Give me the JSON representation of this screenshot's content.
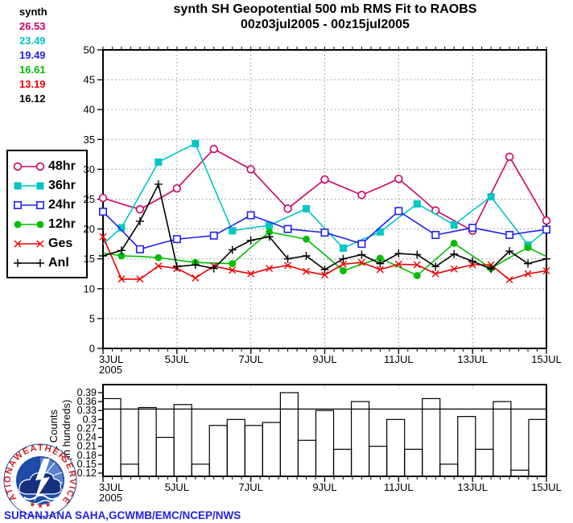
{
  "header": {
    "title_line1": "synth SH Geopotential 500 mb RMS Fit to RAOBS",
    "title_line2": "00z03jul2005 - 00z15jul2005"
  },
  "stats": {
    "rows": [
      {
        "text": "synth",
        "color": "#000000"
      },
      {
        "text": "26.53",
        "color": "#CC0066"
      },
      {
        "text": "23.49",
        "color": "#00C5C5"
      },
      {
        "text": "19.49",
        "color": "#2222EE"
      },
      {
        "text": "16.61",
        "color": "#00BE00"
      },
      {
        "text": "13.19",
        "color": "#EE0000"
      },
      {
        "text": "16.12",
        "color": "#000000"
      }
    ]
  },
  "legend": {
    "items": [
      {
        "label": "48hr",
        "color": "#CC0066",
        "marker": "circle-open"
      },
      {
        "label": "36hr",
        "color": "#00C5C5",
        "marker": "square-filled"
      },
      {
        "label": "24hr",
        "color": "#2222EE",
        "marker": "square-open"
      },
      {
        "label": "12hr",
        "color": "#00BE00",
        "marker": "circle-filled"
      },
      {
        "label": "Ges",
        "color": "#EE0000",
        "marker": "x"
      },
      {
        "label": "Anl",
        "color": "#000000",
        "marker": "plus"
      }
    ]
  },
  "chart_data": [
    {
      "type": "line",
      "title": "synth SH Geopotential 500 mb RMS Fit to RAOBS 00z03jul2005 - 00z15jul2005",
      "x_unit": "12-hourly synoptic times",
      "ylim": [
        0,
        50
      ],
      "ystep": 5,
      "grid": "dotted",
      "x_tick_labels": [
        {
          "pos": 0,
          "label": "3JUL",
          "sub": "2005"
        },
        {
          "pos": 4,
          "label": "5JUL"
        },
        {
          "pos": 8,
          "label": "7JUL"
        },
        {
          "pos": 12,
          "label": "9JUL"
        },
        {
          "pos": 16,
          "label": "11JUL"
        },
        {
          "pos": 20,
          "label": "13JUL"
        },
        {
          "pos": 24,
          "label": "15JUL"
        }
      ],
      "x_gridline_positions": [
        4,
        8,
        12,
        16,
        20
      ],
      "series": [
        {
          "name": "48hr",
          "color": "#CC0066",
          "marker": "circle-open",
          "marker_every": 2,
          "marker_phase": 0,
          "values": [
            25.2,
            24.2,
            23.3,
            25.0,
            26.8,
            30.1,
            33.4,
            31.7,
            30.0,
            26.7,
            23.4,
            25.9,
            28.3,
            27.0,
            25.7,
            27.0,
            28.4,
            25.8,
            23.1,
            21.4,
            19.7,
            25.9,
            32.1,
            26.8,
            21.4
          ]
        },
        {
          "name": "36hr",
          "color": "#00C5C5",
          "marker": "square-filled",
          "marker_every": 2,
          "marker_phase": 1,
          "values": [
            17.5,
            20.2,
            25.7,
            31.2,
            32.8,
            34.3,
            27.0,
            19.7,
            20.2,
            20.6,
            22.0,
            23.4,
            20.1,
            16.8,
            18.2,
            19.5,
            21.9,
            24.2,
            22.5,
            20.7,
            23.1,
            25.4,
            21.4,
            17.3,
            19.8
          ]
        },
        {
          "name": "24hr",
          "color": "#2222EE",
          "marker": "square-open",
          "marker_every": 2,
          "marker_phase": 0,
          "values": [
            22.9,
            19.8,
            16.6,
            17.5,
            18.3,
            18.6,
            18.9,
            20.6,
            22.3,
            21.2,
            20.0,
            19.7,
            19.4,
            18.5,
            17.5,
            20.3,
            23.0,
            21.0,
            19.0,
            19.6,
            20.2,
            19.6,
            19.0,
            19.5,
            19.9
          ]
        },
        {
          "name": "12hr",
          "color": "#00BE00",
          "marker": "circle-filled",
          "marker_every": 2,
          "marker_phase": 1,
          "values": [
            16.0,
            15.5,
            15.4,
            15.2,
            14.8,
            14.4,
            14.3,
            14.2,
            16.9,
            19.5,
            18.9,
            18.3,
            15.7,
            13.0,
            14.1,
            15.1,
            13.7,
            12.2,
            14.9,
            17.6,
            15.5,
            13.4,
            15.2,
            16.9,
            15.4
          ]
        },
        {
          "name": "Ges",
          "color": "#EE0000",
          "marker": "x",
          "marker_every": 1,
          "marker_phase": 0,
          "values": [
            18.7,
            11.6,
            11.6,
            13.8,
            13.4,
            11.8,
            13.8,
            13.1,
            12.5,
            13.4,
            13.9,
            12.9,
            12.3,
            14.1,
            14.4,
            13.2,
            14.1,
            14.0,
            12.5,
            13.3,
            14.0,
            14.0,
            11.5,
            12.5,
            13.0
          ]
        },
        {
          "name": "Anl",
          "color": "#000000",
          "marker": "plus",
          "marker_every": 1,
          "marker_phase": 0,
          "values": [
            15.5,
            16.4,
            21.3,
            27.5,
            13.7,
            14.0,
            13.4,
            16.5,
            18.1,
            18.7,
            15.0,
            15.5,
            13.2,
            15.0,
            15.7,
            14.2,
            15.9,
            15.7,
            13.7,
            15.8,
            14.6,
            13.3,
            16.3,
            14.2,
            15.0
          ]
        }
      ]
    },
    {
      "type": "bar",
      "ylabel_line1": "1 Counts",
      "ylabel_line2": "(in hundreds)",
      "y_ticks": {
        "min": 0.12,
        "max": 0.39,
        "step": 0.03
      },
      "reference_line": 0.335,
      "bar_fill": "none",
      "bar_stroke": "#000000",
      "x_tick_labels": [
        {
          "pos": 0,
          "label": "3JUL",
          "sub": "2005"
        },
        {
          "pos": 4,
          "label": "5JUL"
        },
        {
          "pos": 8,
          "label": "7JUL"
        },
        {
          "pos": 12,
          "label": "9JUL"
        },
        {
          "pos": 16,
          "label": "11JUL"
        },
        {
          "pos": 20,
          "label": "13JUL"
        },
        {
          "pos": 24,
          "label": "15JUL"
        }
      ],
      "x_gridline_positions": [
        4,
        8,
        12,
        16,
        20
      ],
      "values": [
        0.37,
        0.15,
        0.34,
        0.24,
        0.35,
        0.15,
        0.28,
        0.3,
        0.28,
        0.29,
        0.39,
        0.23,
        0.33,
        0.2,
        0.36,
        0.21,
        0.3,
        0.2,
        0.37,
        0.15,
        0.31,
        0.2,
        0.36,
        0.13,
        0.3
      ]
    }
  ],
  "footer": {
    "attribution": "SURANJANA SAHA,GCWMB/EMC/NCEP/NWS",
    "logo": {
      "top": "WEATHER",
      "left": "NATIONAL",
      "right": "SERVICE",
      "stars": "★ ★ ★"
    }
  }
}
